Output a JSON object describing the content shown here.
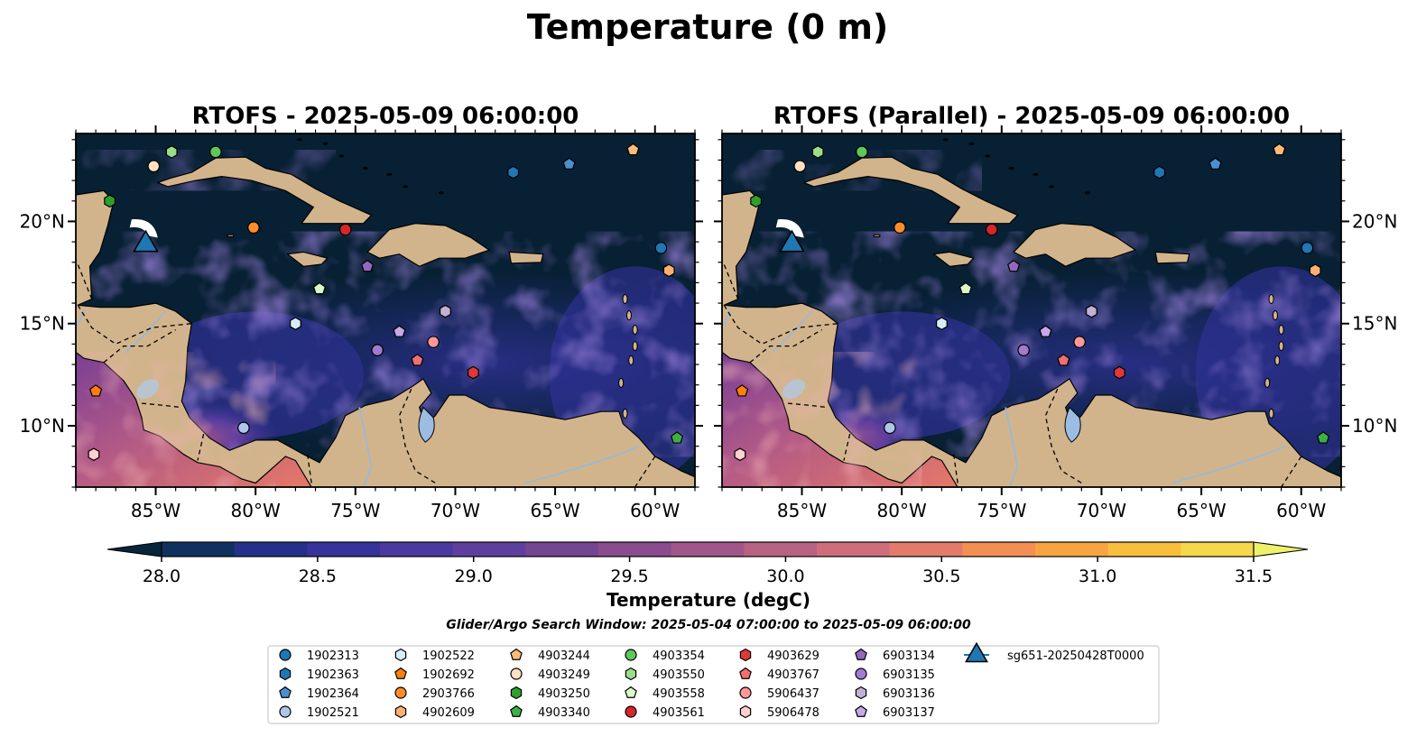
{
  "figure": {
    "suptitle": "Temperature (0 m)",
    "panels": [
      {
        "title": "RTOFS - 2025-05-09 06:00:00"
      },
      {
        "title": "RTOFS (Parallel) - 2025-05-09 06:00:00"
      }
    ],
    "lon_ticks": [
      "85°W",
      "80°W",
      "75°W",
      "70°W",
      "65°W",
      "60°W"
    ],
    "lat_ticks": [
      "20°N",
      "15°N",
      "10°N"
    ],
    "extent": {
      "lon": [
        -89,
        -58
      ],
      "lat": [
        7,
        24.3
      ]
    }
  },
  "colorbar": {
    "label": "Temperature (degC)",
    "tick_labels": [
      "28.0",
      "28.5",
      "29.0",
      "29.5",
      "30.0",
      "30.5",
      "31.0",
      "31.5"
    ],
    "levels": [
      28.0,
      31.5
    ],
    "colors": [
      "#06263c",
      "#10315f",
      "#24318a",
      "#36339a",
      "#4a3aa0",
      "#5f3f9e",
      "#744593",
      "#8a4c8e",
      "#a1568a",
      "#b86284",
      "#cf6e7b",
      "#e37b6b",
      "#f38f52",
      "#f8a440",
      "#f8bf3e",
      "#f6d84a",
      "#eef16a"
    ]
  },
  "search_window": "Glider/Argo Search Window: 2025-05-04 07:00:00 to 2025-05-09 06:00:00",
  "colors": {
    "land": "#d2b48c",
    "ocean_dark": "#072033",
    "river": "#9fb8cf",
    "lake": "#9bbde4"
  },
  "legend": [
    {
      "label": "1902313",
      "marker": "circle",
      "color": "#1f77b4"
    },
    {
      "label": "1902363",
      "marker": "hexagon",
      "color": "#1f77b4"
    },
    {
      "label": "1902364",
      "marker": "pentagon",
      "color": "#4a90d0"
    },
    {
      "label": "1902521",
      "marker": "circle",
      "color": "#aec7e8"
    },
    {
      "label": "1902522",
      "marker": "hexagon",
      "color": "#d8ecf8"
    },
    {
      "label": "1902692",
      "marker": "pentagon",
      "color": "#ff7f0e"
    },
    {
      "label": "2903766",
      "marker": "circle",
      "color": "#ff8c2a"
    },
    {
      "label": "4902609",
      "marker": "hexagon",
      "color": "#ffb070"
    },
    {
      "label": "4903244",
      "marker": "pentagon",
      "color": "#ffbb78"
    },
    {
      "label": "4903249",
      "marker": "circle",
      "color": "#ffe0c0"
    },
    {
      "label": "4903250",
      "marker": "hexagon",
      "color": "#2ca02c"
    },
    {
      "label": "4903340",
      "marker": "pentagon",
      "color": "#3cb043"
    },
    {
      "label": "4903354",
      "marker": "circle",
      "color": "#5cc85c"
    },
    {
      "label": "4903550",
      "marker": "hexagon",
      "color": "#98df8a"
    },
    {
      "label": "4903558",
      "marker": "pentagon",
      "color": "#d8f8c8"
    },
    {
      "label": "4903561",
      "marker": "circle",
      "color": "#d62728"
    },
    {
      "label": "4903629",
      "marker": "hexagon",
      "color": "#e0373a"
    },
    {
      "label": "4903767",
      "marker": "pentagon",
      "color": "#f07070"
    },
    {
      "label": "5906437",
      "marker": "circle",
      "color": "#ff9896"
    },
    {
      "label": "5906478",
      "marker": "hexagon",
      "color": "#ffd0cf"
    },
    {
      "label": "6903134",
      "marker": "pentagon",
      "color": "#9467bd"
    },
    {
      "label": "6903135",
      "marker": "circle",
      "color": "#a27ad0"
    },
    {
      "label": "6903136",
      "marker": "hexagon",
      "color": "#c5b0d5"
    },
    {
      "label": "6903137",
      "marker": "pentagon",
      "color": "#c8a8e8"
    },
    {
      "label": "sg651-20250428T0000",
      "marker": "triangle",
      "color": "#1f77b4"
    }
  ],
  "markers": [
    {
      "id": "1902313",
      "lon": -59.7,
      "lat": 18.7
    },
    {
      "id": "1902363",
      "lon": -67.1,
      "lat": 22.4
    },
    {
      "id": "1902364",
      "lon": -64.3,
      "lat": 22.8
    },
    {
      "id": "1902521",
      "lon": -80.6,
      "lat": 9.9
    },
    {
      "id": "1902522",
      "lon": -78.0,
      "lat": 15.0
    },
    {
      "id": "1902692",
      "lon": -88.0,
      "lat": 11.7
    },
    {
      "id": "2903766",
      "lon": -80.1,
      "lat": 19.7
    },
    {
      "id": "4902609",
      "lon": -59.3,
      "lat": 17.6
    },
    {
      "id": "4903244",
      "lon": -61.1,
      "lat": 23.5
    },
    {
      "id": "4903249",
      "lon": -85.1,
      "lat": 22.7
    },
    {
      "id": "4903250",
      "lon": -87.3,
      "lat": 21.0
    },
    {
      "id": "4903340",
      "lon": -58.9,
      "lat": 9.4
    },
    {
      "id": "4903354",
      "lon": -82.0,
      "lat": 23.4
    },
    {
      "id": "4903550",
      "lon": -84.2,
      "lat": 23.4
    },
    {
      "id": "4903558",
      "lon": -76.8,
      "lat": 16.7
    },
    {
      "id": "4903561",
      "lon": -75.5,
      "lat": 19.6
    },
    {
      "id": "4903629",
      "lon": -69.1,
      "lat": 12.6
    },
    {
      "id": "4903767",
      "lon": -71.9,
      "lat": 13.2
    },
    {
      "id": "5906437",
      "lon": -71.1,
      "lat": 14.1
    },
    {
      "id": "5906478",
      "lon": -88.1,
      "lat": 8.6
    },
    {
      "id": "6903134",
      "lon": -74.4,
      "lat": 17.8
    },
    {
      "id": "6903135",
      "lon": -73.9,
      "lat": 13.7
    },
    {
      "id": "6903136",
      "lon": -70.5,
      "lat": 15.6
    },
    {
      "id": "6903137",
      "lon": -72.8,
      "lat": 14.6
    },
    {
      "id": "sg651-20250428T0000",
      "lon": -85.5,
      "lat": 19.0
    }
  ]
}
